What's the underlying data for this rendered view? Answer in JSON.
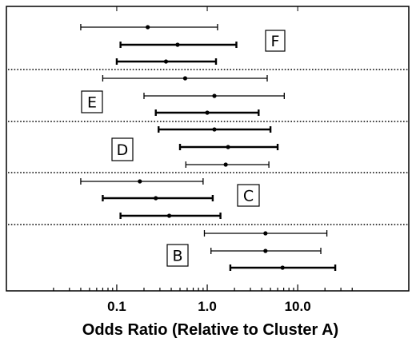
{
  "chart_data": {
    "type": "forest",
    "xlabel": "Odds Ratio (Relative to Cluster A)",
    "xscale": "log",
    "xlim": [
      0.02,
      40
    ],
    "xticks": [
      0.1,
      1.0,
      10.0
    ],
    "xtick_labels": [
      "0.1",
      "1.0",
      "10.0"
    ],
    "grid": false,
    "groups": [
      {
        "label": "F",
        "rows": [
          {
            "estimate": 0.22,
            "lower": 0.04,
            "upper": 1.3,
            "bold": false
          },
          {
            "estimate": 0.47,
            "lower": 0.11,
            "upper": 2.1,
            "bold": true
          },
          {
            "estimate": 0.35,
            "lower": 0.1,
            "upper": 1.25,
            "bold": true
          }
        ]
      },
      {
        "label": "E",
        "rows": [
          {
            "estimate": 0.57,
            "lower": 0.07,
            "upper": 4.6,
            "bold": false
          },
          {
            "estimate": 1.2,
            "lower": 0.2,
            "upper": 7.1,
            "bold": false
          },
          {
            "estimate": 1.0,
            "lower": 0.27,
            "upper": 3.7,
            "bold": true
          }
        ]
      },
      {
        "label": "D",
        "rows": [
          {
            "estimate": 1.2,
            "lower": 0.29,
            "upper": 5.0,
            "bold": true
          },
          {
            "estimate": 1.7,
            "lower": 0.5,
            "upper": 6.0,
            "bold": true
          },
          {
            "estimate": 1.6,
            "lower": 0.58,
            "upper": 4.8,
            "bold": false
          }
        ]
      },
      {
        "label": "C",
        "rows": [
          {
            "estimate": 0.18,
            "lower": 0.04,
            "upper": 0.9,
            "bold": false
          },
          {
            "estimate": 0.27,
            "lower": 0.07,
            "upper": 1.15,
            "bold": true
          },
          {
            "estimate": 0.38,
            "lower": 0.11,
            "upper": 1.4,
            "bold": true
          }
        ]
      },
      {
        "label": "B",
        "rows": [
          {
            "estimate": 4.4,
            "lower": 0.93,
            "upper": 21.0,
            "bold": false
          },
          {
            "estimate": 4.4,
            "lower": 1.1,
            "upper": 18.0,
            "bold": false
          },
          {
            "estimate": 6.8,
            "lower": 1.8,
            "upper": 26.0,
            "bold": true
          }
        ]
      }
    ]
  }
}
